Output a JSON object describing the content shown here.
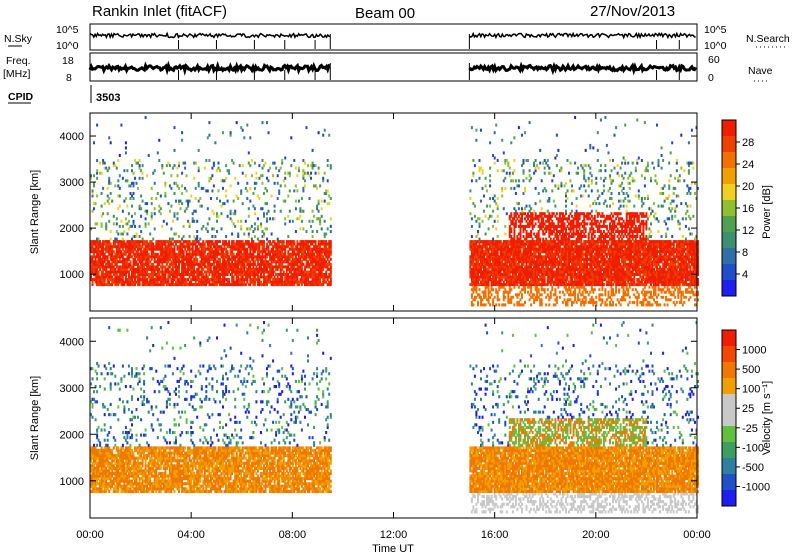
{
  "header": {
    "station": "Rankin Inlet (fitACF)",
    "beam": "Beam 00",
    "date": "27/Nov/2013"
  },
  "strip_panels": {
    "nsky_label": "N.Sky",
    "nsky_ticks": [
      "10^5",
      "10^0"
    ],
    "nsearch_label": "N.Search",
    "nsearch_ticks": [
      "10^5",
      "10^0"
    ],
    "freq_label_1": "Freq.",
    "freq_label_2": "[MHz]",
    "freq_ticks": [
      "18",
      "8"
    ],
    "nave_label": "Nave",
    "nave_ticks": [
      "60",
      "0"
    ],
    "cpid_label": "CPID",
    "cpid_value": "3503"
  },
  "colors": {
    "power_scale": [
      "#1e1ef0",
      "#1e4ec8",
      "#2f6fa8",
      "#3c8f70",
      "#50a050",
      "#8fc030",
      "#f0d020",
      "#f0a000",
      "#f07000",
      "#f04000",
      "#f01e00"
    ],
    "velocity_scale": [
      "#1e1ef0",
      "#1e50c8",
      "#2f7fa0",
      "#3c9f60",
      "#60c040",
      "#c8c8c8",
      "#c8c8c8",
      "#f0a000",
      "#f07800",
      "#f04800",
      "#f01e00"
    ],
    "line": "#000000"
  },
  "chart_data": [
    {
      "type": "heatmap",
      "panel": "power",
      "xlabel": "",
      "ylabel": "Slant Range [km]",
      "xlim": [
        0,
        24
      ],
      "ylim": [
        200,
        4500
      ],
      "xticks": [
        "00:00",
        "04:00",
        "08:00",
        "12:00",
        "16:00",
        "20:00",
        "00:00"
      ],
      "yticks": [
        "1000",
        "2000",
        "3000",
        "4000"
      ],
      "colorbar": {
        "label": "Power [dB]",
        "ticks": [
          "4",
          "8",
          "12",
          "16",
          "20",
          "24",
          "28"
        ],
        "range": [
          0,
          30
        ]
      },
      "segments": [
        {
          "t_start": 0.0,
          "t_end": 9.5
        },
        {
          "t_start": 15.0,
          "t_end": 24.0
        }
      ]
    },
    {
      "type": "heatmap",
      "panel": "velocity",
      "xlabel": "Time UT",
      "ylabel": "Slant Range [km]",
      "xlim": [
        0,
        24
      ],
      "ylim": [
        200,
        4500
      ],
      "xticks": [
        "00:00",
        "04:00",
        "08:00",
        "12:00",
        "16:00",
        "20:00",
        "00:00"
      ],
      "yticks": [
        "1000",
        "2000",
        "3000",
        "4000"
      ],
      "colorbar": {
        "label": "Velocity [m s⁻¹]",
        "ticks": [
          "1000",
          "500",
          "100",
          "25",
          "-25",
          "-100",
          "-500",
          "-1000"
        ]
      },
      "segments": [
        {
          "t_start": 0.0,
          "t_end": 9.5
        },
        {
          "t_start": 15.0,
          "t_end": 24.0
        }
      ]
    }
  ]
}
